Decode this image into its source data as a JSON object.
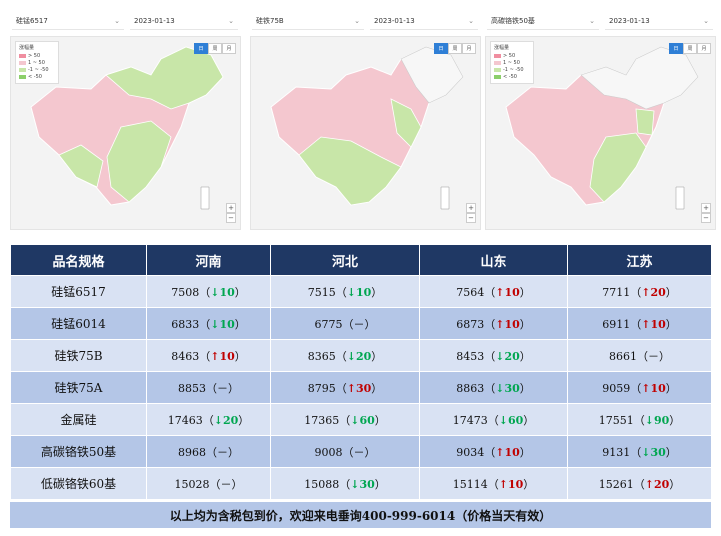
{
  "colors": {
    "header_bg": "#1f3864",
    "row_light": "#d9e2f3",
    "row_dark": "#b4c6e7",
    "up": "#c00000",
    "down": "#00a650",
    "map_pink": "#f4c7cf",
    "map_green": "#c8e6a8",
    "map_white": "#f7f7f7"
  },
  "panels": [
    {
      "product": "硅锰6517",
      "date": "2023-01-13"
    },
    {
      "product": "硅铁75B",
      "date": "2023-01-13"
    },
    {
      "product": "高碳铬铁50基",
      "date": "2023-01-13"
    }
  ],
  "legend": {
    "title": "涨幅量",
    "items": [
      "> 50",
      "1 ~ 50",
      "-1 ~ -50",
      "< -50"
    ]
  },
  "view_toggle": [
    "日",
    "周",
    "月"
  ],
  "zoom": {
    "in": "+",
    "out": "−"
  },
  "table": {
    "headers": [
      "品名规格",
      "河南",
      "河北",
      "山东",
      "江苏"
    ],
    "rows": [
      {
        "name": "硅锰6517",
        "cells": [
          {
            "price": "7508",
            "dir": "down",
            "arrow": "↓",
            "delta": "10"
          },
          {
            "price": "7515",
            "dir": "down",
            "arrow": "↓",
            "delta": "10"
          },
          {
            "price": "7564",
            "dir": "up",
            "arrow": "↑",
            "delta": "10"
          },
          {
            "price": "7711",
            "dir": "up",
            "arrow": "↑",
            "delta": "20"
          }
        ]
      },
      {
        "name": "硅锰6014",
        "cells": [
          {
            "price": "6833",
            "dir": "down",
            "arrow": "↓",
            "delta": "10"
          },
          {
            "price": "6775",
            "dir": "flat",
            "arrow": "",
            "delta": "－"
          },
          {
            "price": "6873",
            "dir": "up",
            "arrow": "↑",
            "delta": "10"
          },
          {
            "price": "6911",
            "dir": "up",
            "arrow": "↑",
            "delta": "10"
          }
        ]
      },
      {
        "name": "硅铁75B",
        "cells": [
          {
            "price": "8463",
            "dir": "up",
            "arrow": "↑",
            "delta": "10"
          },
          {
            "price": "8365",
            "dir": "down",
            "arrow": "↓",
            "delta": "20"
          },
          {
            "price": "8453",
            "dir": "down",
            "arrow": "↓",
            "delta": "20"
          },
          {
            "price": "8661",
            "dir": "flat",
            "arrow": "",
            "delta": "－"
          }
        ]
      },
      {
        "name": "硅铁75A",
        "cells": [
          {
            "price": "8853",
            "dir": "flat",
            "arrow": "",
            "delta": "－"
          },
          {
            "price": "8795",
            "dir": "up",
            "arrow": "↑",
            "delta": "30"
          },
          {
            "price": "8863",
            "dir": "down",
            "arrow": "↓",
            "delta": "30"
          },
          {
            "price": "9059",
            "dir": "up",
            "arrow": "↑",
            "delta": "10"
          }
        ]
      },
      {
        "name": "金属硅",
        "cells": [
          {
            "price": "17463",
            "dir": "down",
            "arrow": "↓",
            "delta": "20"
          },
          {
            "price": "17365",
            "dir": "down",
            "arrow": "↓",
            "delta": "60"
          },
          {
            "price": "17473",
            "dir": "down",
            "arrow": "↓",
            "delta": "60"
          },
          {
            "price": "17551",
            "dir": "down",
            "arrow": "↓",
            "delta": "90"
          }
        ]
      },
      {
        "name": "高碳铬铁50基",
        "cells": [
          {
            "price": "8968",
            "dir": "flat",
            "arrow": "",
            "delta": "－"
          },
          {
            "price": "9008",
            "dir": "flat",
            "arrow": "",
            "delta": "－"
          },
          {
            "price": "9034",
            "dir": "up",
            "arrow": "↑",
            "delta": "10"
          },
          {
            "price": "9131",
            "dir": "down",
            "arrow": "↓",
            "delta": "30"
          }
        ]
      },
      {
        "name": "低碳铬铁60基",
        "cells": [
          {
            "price": "15028",
            "dir": "flat",
            "arrow": "",
            "delta": "－"
          },
          {
            "price": "15088",
            "dir": "down",
            "arrow": "↓",
            "delta": "30"
          },
          {
            "price": "15114",
            "dir": "up",
            "arrow": "↑",
            "delta": "10"
          },
          {
            "price": "15261",
            "dir": "up",
            "arrow": "↑",
            "delta": "20"
          }
        ]
      }
    ]
  },
  "footer_note": "以上均为含税包到价，欢迎来电垂询400-999-6014（价格当天有效）"
}
